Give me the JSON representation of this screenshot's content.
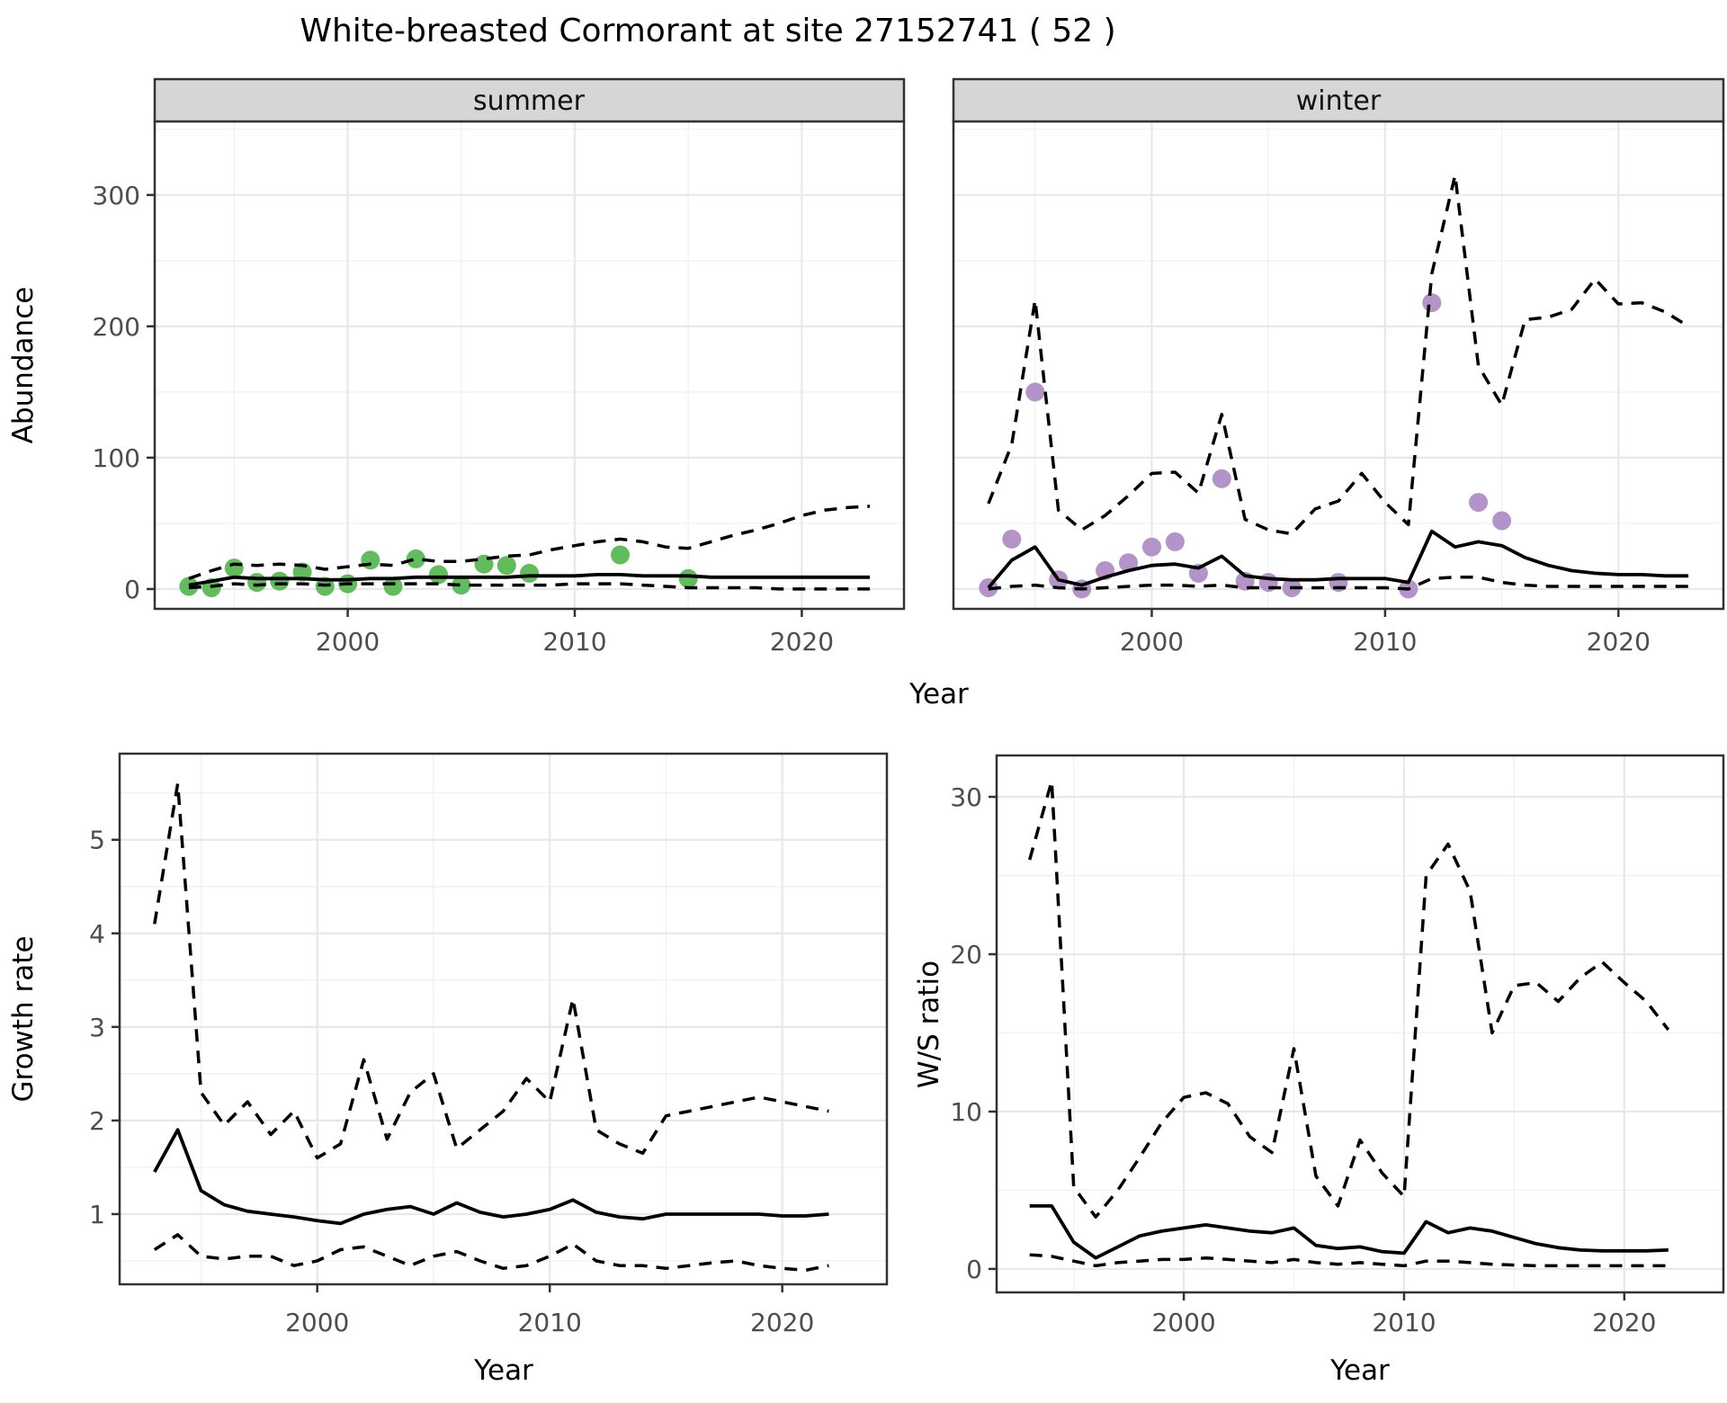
{
  "title": "White-breasted Cormorant at site 27152741 ( 52 )",
  "axes": {
    "abundance_label": "Abundance",
    "growth_label": "Growth rate",
    "ws_label": "W/S ratio",
    "year_label": "Year"
  },
  "facets": {
    "summer": "summer",
    "winter": "winter"
  },
  "colors": {
    "summer_points": "#61bc5c",
    "winter_points": "#b493c8",
    "line": "#000000",
    "panel_border": "#333333",
    "grid_major": "#e8e8e8",
    "grid_minor": "#f2f2f2",
    "strip_bg": "#d6d6d6",
    "tick_text": "#4d4d4d",
    "background": "#ffffff"
  },
  "chart_data": [
    {
      "id": "abundance-summer",
      "type": "line",
      "facet": "summer",
      "xlabel": "Year",
      "ylabel": "Abundance",
      "xlim": [
        1991.5,
        2024.5
      ],
      "ylim": [
        -15.1,
        356
      ],
      "xticks": [
        2000,
        2010,
        2020
      ],
      "yticks": [
        0,
        100,
        200,
        300
      ],
      "show_y_labels": true,
      "grid": true,
      "legend_position": "none",
      "x": [
        1993,
        1994,
        1995,
        1996,
        1997,
        1998,
        1999,
        2000,
        2001,
        2002,
        2003,
        2004,
        2005,
        2006,
        2007,
        2008,
        2009,
        2010,
        2011,
        2012,
        2013,
        2014,
        2015,
        2016,
        2017,
        2018,
        2019,
        2020,
        2021,
        2022,
        2023
      ],
      "series": [
        {
          "name": "median_fit",
          "style": "solid",
          "values": [
            3,
            6,
            9,
            8,
            8,
            8,
            7,
            7,
            8,
            8,
            9,
            9,
            9,
            9,
            9,
            10,
            10,
            10,
            11,
            11,
            10,
            10,
            10,
            9,
            9,
            9,
            9,
            9,
            9,
            9,
            9
          ]
        },
        {
          "name": "upper_ci",
          "style": "dashed",
          "values": [
            8,
            14,
            19,
            18,
            19,
            18,
            15,
            17,
            19,
            18,
            23,
            21,
            21,
            23,
            25,
            26,
            30,
            33,
            36,
            38,
            36,
            32,
            31,
            36,
            41,
            45,
            50,
            56,
            60,
            62,
            63
          ]
        },
        {
          "name": "lower_ci",
          "style": "dashed",
          "values": [
            1,
            2,
            4,
            3,
            4,
            4,
            3,
            4,
            4,
            4,
            4,
            4,
            3,
            3,
            3,
            3,
            3,
            4,
            4,
            4,
            3,
            2,
            1,
            1,
            1,
            1,
            0,
            0,
            0,
            0,
            0
          ]
        }
      ],
      "points": {
        "name": "observed-summer-counts",
        "color": "#61bc5c",
        "x": [
          1993,
          1994,
          1995,
          1996,
          1997,
          1998,
          1999,
          2000,
          2001,
          2002,
          2003,
          2004,
          2005,
          2006,
          2007,
          2008,
          2012,
          2015
        ],
        "y": [
          2,
          1,
          16,
          5,
          6,
          13,
          2,
          4,
          22,
          2,
          23,
          11,
          3,
          19,
          18,
          12,
          26,
          8
        ]
      }
    },
    {
      "id": "abundance-winter",
      "type": "line",
      "facet": "winter",
      "xlabel": "Year",
      "ylabel": "Abundance",
      "xlim": [
        1991.5,
        2024.5
      ],
      "ylim": [
        -15.1,
        356
      ],
      "xticks": [
        2000,
        2010,
        2020
      ],
      "yticks": [
        0,
        100,
        200,
        300
      ],
      "show_y_labels": false,
      "grid": true,
      "legend_position": "none",
      "x": [
        1993,
        1994,
        1995,
        1996,
        1997,
        1998,
        1999,
        2000,
        2001,
        2002,
        2003,
        2004,
        2005,
        2006,
        2007,
        2008,
        2009,
        2010,
        2011,
        2012,
        2013,
        2014,
        2015,
        2016,
        2017,
        2018,
        2019,
        2020,
        2021,
        2022,
        2023
      ],
      "series": [
        {
          "name": "median_fit",
          "style": "solid",
          "values": [
            1,
            22,
            32,
            7,
            3,
            9,
            14,
            18,
            19,
            16,
            25,
            10,
            8,
            7,
            7,
            8,
            8,
            8,
            5,
            44,
            32,
            36,
            33,
            24,
            18,
            14,
            12,
            11,
            11,
            10,
            10
          ]
        },
        {
          "name": "upper_ci",
          "style": "dashed",
          "values": [
            65,
            110,
            220,
            60,
            45,
            56,
            71,
            88,
            89,
            73,
            133,
            53,
            45,
            42,
            61,
            67,
            88,
            66,
            49,
            240,
            315,
            170,
            140,
            205,
            207,
            213,
            236,
            217,
            218,
            211,
            200
          ]
        },
        {
          "name": "lower_ci",
          "style": "dashed",
          "values": [
            0,
            2,
            3,
            1,
            0,
            1,
            2,
            3,
            3,
            2,
            3,
            1,
            1,
            1,
            1,
            1,
            1,
            1,
            0,
            8,
            9,
            9,
            5,
            3,
            2,
            2,
            2,
            2,
            2,
            2,
            2
          ]
        }
      ],
      "points": {
        "name": "observed-winter-counts",
        "color": "#b493c8",
        "x": [
          1993,
          1994,
          1995,
          1996,
          1997,
          1998,
          1999,
          2000,
          2001,
          2002,
          2003,
          2004,
          2005,
          2006,
          2008,
          2011,
          2012,
          2014,
          2015
        ],
        "y": [
          1,
          38,
          150,
          7,
          0,
          14,
          20,
          32,
          36,
          12,
          84,
          6,
          5,
          1,
          5,
          0,
          218,
          66,
          52
        ]
      }
    },
    {
      "id": "growth-rate",
      "type": "line",
      "facet": null,
      "xlabel": "Year",
      "ylabel": "Growth rate",
      "xlim": [
        1991.5,
        2024.5
      ],
      "ylim": [
        0.25,
        5.92
      ],
      "xticks": [
        2000,
        2010,
        2020
      ],
      "yticks": [
        1,
        2,
        3,
        4,
        5
      ],
      "show_y_labels": true,
      "grid": true,
      "legend_position": "none",
      "x": [
        1993,
        1994,
        1995,
        1996,
        1997,
        1998,
        1999,
        2000,
        2001,
        2002,
        2003,
        2004,
        2005,
        2006,
        2007,
        2008,
        2009,
        2010,
        2011,
        2012,
        2013,
        2014,
        2015,
        2016,
        2017,
        2018,
        2019,
        2020,
        2021,
        2022
      ],
      "series": [
        {
          "name": "median_fit",
          "style": "solid",
          "values": [
            1.45,
            1.9,
            1.25,
            1.1,
            1.03,
            1.0,
            0.97,
            0.93,
            0.9,
            1.0,
            1.05,
            1.08,
            1.0,
            1.12,
            1.02,
            0.97,
            1.0,
            1.05,
            1.15,
            1.02,
            0.97,
            0.95,
            1.0,
            1.0,
            1.0,
            1.0,
            1.0,
            0.98,
            0.98,
            1.0
          ]
        },
        {
          "name": "upper_ci",
          "style": "dashed",
          "values": [
            4.1,
            5.6,
            2.3,
            1.95,
            2.2,
            1.85,
            2.1,
            1.6,
            1.75,
            2.65,
            1.8,
            2.3,
            2.5,
            1.7,
            1.9,
            2.1,
            2.45,
            2.2,
            3.3,
            1.9,
            1.75,
            1.65,
            2.05,
            2.1,
            2.15,
            2.2,
            2.25,
            2.2,
            2.15,
            2.1
          ]
        },
        {
          "name": "lower_ci",
          "style": "dashed",
          "values": [
            0.62,
            0.78,
            0.55,
            0.52,
            0.55,
            0.55,
            0.45,
            0.5,
            0.62,
            0.65,
            0.55,
            0.45,
            0.55,
            0.6,
            0.5,
            0.42,
            0.45,
            0.55,
            0.68,
            0.5,
            0.45,
            0.45,
            0.42,
            0.45,
            0.48,
            0.5,
            0.45,
            0.42,
            0.4,
            0.45
          ]
        }
      ],
      "points": null
    },
    {
      "id": "ws-ratio",
      "type": "line",
      "facet": null,
      "xlabel": "Year",
      "ylabel": "W/S ratio",
      "xlim": [
        1991.5,
        2024.5
      ],
      "ylim": [
        -1.49,
        32.63
      ],
      "xticks": [
        2000,
        2010,
        2020
      ],
      "yticks": [
        0,
        10,
        20,
        30
      ],
      "show_y_labels": true,
      "grid": true,
      "legend_position": "none",
      "x": [
        1993,
        1994,
        1995,
        1996,
        1997,
        1998,
        1999,
        2000,
        2001,
        2002,
        2003,
        2004,
        2005,
        2006,
        2007,
        2008,
        2009,
        2010,
        2011,
        2012,
        2013,
        2014,
        2015,
        2016,
        2017,
        2018,
        2019,
        2020,
        2021,
        2022
      ],
      "series": [
        {
          "name": "median_fit",
          "style": "solid",
          "values": [
            4.0,
            4.0,
            1.7,
            0.7,
            1.4,
            2.1,
            2.4,
            2.6,
            2.8,
            2.6,
            2.4,
            2.3,
            2.6,
            1.5,
            1.3,
            1.4,
            1.1,
            1.0,
            3.0,
            2.3,
            2.6,
            2.4,
            2.0,
            1.6,
            1.35,
            1.2,
            1.15,
            1.15,
            1.15,
            1.2
          ]
        },
        {
          "name": "upper_ci",
          "style": "dashed",
          "values": [
            26,
            31,
            5.2,
            3.3,
            5.0,
            7.1,
            9.3,
            10.9,
            11.2,
            10.5,
            8.4,
            7.4,
            14.0,
            5.9,
            4.0,
            8.2,
            6.1,
            4.6,
            25,
            27,
            24,
            15,
            18,
            18.2,
            17,
            18.5,
            19.5,
            18.2,
            17,
            15.2
          ]
        },
        {
          "name": "lower_ci",
          "style": "dashed",
          "values": [
            0.9,
            0.8,
            0.5,
            0.2,
            0.4,
            0.5,
            0.6,
            0.6,
            0.7,
            0.6,
            0.5,
            0.4,
            0.6,
            0.4,
            0.3,
            0.4,
            0.3,
            0.2,
            0.5,
            0.5,
            0.4,
            0.3,
            0.25,
            0.2,
            0.2,
            0.2,
            0.2,
            0.2,
            0.2,
            0.2
          ]
        }
      ],
      "points": null
    }
  ]
}
